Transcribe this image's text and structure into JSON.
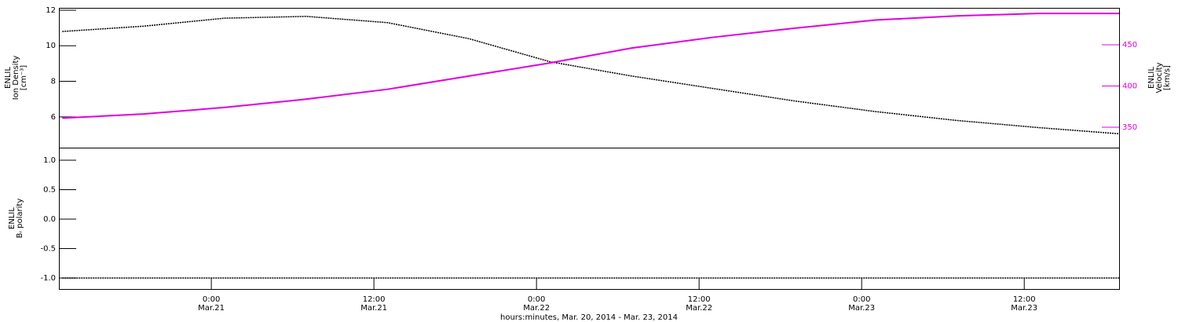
{
  "chart_data": [
    {
      "type": "line",
      "ylabel": [
        "ENLIL",
        "Ion Density",
        "[cm⁻³]"
      ],
      "y2label": [
        "ENLIL",
        "Velocity",
        "[km/s]"
      ],
      "x": [
        "2014-03-20T13:00",
        "2014-03-20T19:00",
        "2014-03-21T01:00",
        "2014-03-21T07:00",
        "2014-03-21T13:00",
        "2014-03-21T19:00",
        "2014-03-22T01:00",
        "2014-03-22T07:00",
        "2014-03-22T13:00",
        "2014-03-22T19:00",
        "2014-03-23T01:00",
        "2014-03-23T07:00",
        "2014-03-23T13:00",
        "2014-03-23T19:00"
      ],
      "xlim": [
        "2014-03-20T12:45",
        "2014-03-23T19:00"
      ],
      "ylim": [
        4.27,
        12.13
      ],
      "yticks": [
        6,
        8,
        10,
        12
      ],
      "y2lim": [
        325.2,
        494.8
      ],
      "y2ticks": [
        350,
        400,
        450
      ],
      "series": [
        {
          "color": "#000000",
          "values": [
            10.8,
            11.1,
            11.55,
            11.65,
            11.3,
            10.4,
            9.1,
            8.3,
            7.6,
            6.9,
            6.3,
            5.8,
            5.4,
            5.05
          ]
        },
        {
          "color": "#e000e0",
          "axis": "y2",
          "values": [
            361,
            366,
            374,
            384,
            396,
            412,
            428,
            446,
            459,
            470,
            480,
            485,
            488,
            488
          ]
        }
      ]
    },
    {
      "type": "line",
      "ylabel": [
        "ENLIL",
        "Bᵣ polarity"
      ],
      "xlabel": "hours:minutes, Mar. 20, 2014 - Mar. 23, 2014",
      "x": [
        "2014-03-20T13:00",
        "2014-03-20T19:00",
        "2014-03-21T01:00",
        "2014-03-21T07:00",
        "2014-03-21T13:00",
        "2014-03-21T19:00",
        "2014-03-22T01:00",
        "2014-03-22T07:00",
        "2014-03-22T13:00",
        "2014-03-22T19:00",
        "2014-03-23T01:00",
        "2014-03-23T07:00",
        "2014-03-23T13:00",
        "2014-03-23T19:00"
      ],
      "xlim": [
        "2014-03-20T12:45",
        "2014-03-23T19:00"
      ],
      "xticks": [
        {
          "value": "2014-03-21T00:00",
          "label": "0:00",
          "date": "Mar.21"
        },
        {
          "value": "2014-03-21T12:00",
          "label": "12:00",
          "date": "Mar.21"
        },
        {
          "value": "2014-03-22T00:00",
          "label": "0:00",
          "date": "Mar.22"
        },
        {
          "value": "2014-03-22T12:00",
          "label": "12:00",
          "date": "Mar.22"
        },
        {
          "value": "2014-03-23T00:00",
          "label": "0:00",
          "date": "Mar.23"
        },
        {
          "value": "2014-03-23T12:00",
          "label": "12:00",
          "date": "Mar.23"
        }
      ],
      "ylim": [
        -1.187,
        1.213
      ],
      "yticks": [
        {
          "value": -1,
          "label": "-1.0"
        },
        {
          "value": -0.5,
          "label": "-0.5"
        },
        {
          "value": 0,
          "label": "0.0"
        },
        {
          "value": 0.5,
          "label": "0.5"
        },
        {
          "value": 1,
          "label": "1.0"
        }
      ],
      "series": [
        {
          "color": "#000000",
          "values": [
            -1,
            -1,
            -1,
            -1,
            -1,
            -1,
            -1,
            -1,
            -1,
            -1,
            -1,
            -1,
            -1,
            -1
          ]
        }
      ]
    }
  ]
}
